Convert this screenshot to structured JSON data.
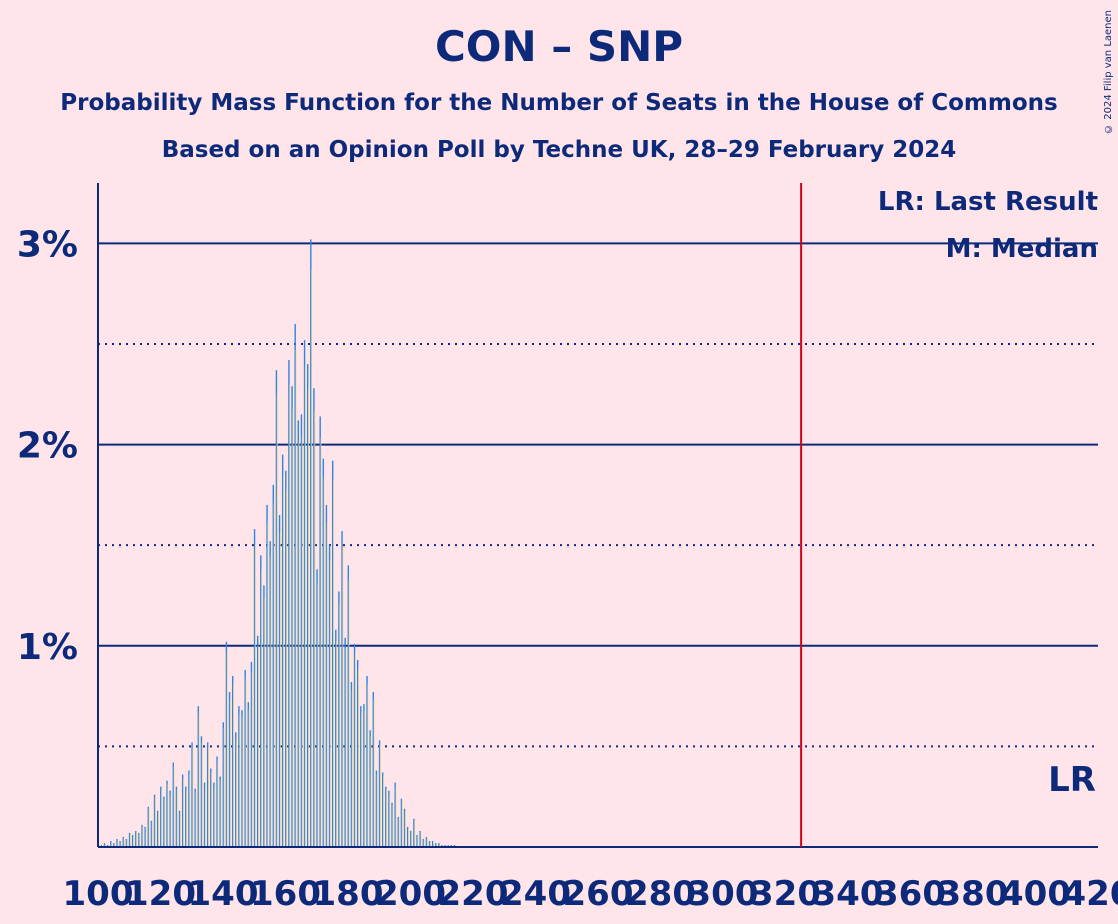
{
  "title": "CON – SNP",
  "subtitle1": "Probability Mass Function for the Number of Seats in the House of Commons",
  "subtitle2": "Based on an Opinion Poll by Techne UK, 28–29 February 2024",
  "copyright": "© 2024 Filip van Laenen",
  "colors": {
    "background": "#FFE5EA",
    "axis": "#0D2A7A",
    "bar_blue": "#2E86DE",
    "bar_yellow": "#F2D68A",
    "last_result_line": "#D0021B"
  },
  "chart_data": {
    "type": "bar",
    "xlim": [
      100,
      420
    ],
    "ylim": [
      0,
      3.3
    ],
    "x_ticks": [
      "100",
      "120",
      "140",
      "160",
      "180",
      "200",
      "220",
      "240",
      "260",
      "280",
      "300",
      "320",
      "340",
      "360",
      "380",
      "400",
      "420"
    ],
    "y_ticks": [
      {
        "value": 1,
        "label": "1%"
      },
      {
        "value": 2,
        "label": "2%"
      },
      {
        "value": 3,
        "label": "3%"
      }
    ],
    "y_minor_gridlines": [
      0.5,
      1.5,
      2.5
    ],
    "last_result": 325,
    "legend": {
      "last_result": "LR: Last Result",
      "median": "M: Median"
    },
    "lr_marker_label": "LR",
    "series": {
      "x": [
        100,
        101,
        102,
        103,
        104,
        105,
        106,
        107,
        108,
        109,
        110,
        111,
        112,
        113,
        114,
        115,
        116,
        117,
        118,
        119,
        120,
        121,
        122,
        123,
        124,
        125,
        126,
        127,
        128,
        129,
        130,
        131,
        132,
        133,
        134,
        135,
        136,
        137,
        138,
        139,
        140,
        141,
        142,
        143,
        144,
        145,
        146,
        147,
        148,
        149,
        150,
        151,
        152,
        153,
        154,
        155,
        156,
        157,
        158,
        159,
        160,
        161,
        162,
        163,
        164,
        165,
        166,
        167,
        168,
        169,
        170,
        171,
        172,
        173,
        174,
        175,
        176,
        177,
        178,
        179,
        180,
        181,
        182,
        183,
        184,
        185,
        186,
        187,
        188,
        189,
        190,
        191,
        192,
        193,
        194,
        195,
        196,
        197,
        198,
        199,
        200,
        201,
        202,
        203,
        204,
        205,
        206,
        207,
        208,
        209,
        210,
        211,
        212,
        213,
        214,
        215,
        216,
        217,
        218,
        219,
        220,
        221,
        222,
        223,
        224,
        225,
        226,
        227,
        228,
        229,
        230,
        231,
        232,
        233,
        234,
        235,
        236,
        237,
        238,
        239,
        240,
        241,
        242,
        243,
        244,
        245
      ],
      "probability": [
        0.01,
        0.01,
        0.02,
        0.01,
        0.03,
        0.02,
        0.04,
        0.03,
        0.05,
        0.04,
        0.07,
        0.06,
        0.08,
        0.07,
        0.11,
        0.1,
        0.2,
        0.13,
        0.26,
        0.18,
        0.3,
        0.25,
        0.33,
        0.28,
        0.42,
        0.3,
        0.18,
        0.36,
        0.3,
        0.38,
        0.52,
        0.29,
        0.7,
        0.55,
        0.32,
        0.52,
        0.39,
        0.32,
        0.45,
        0.35,
        0.62,
        1.02,
        0.77,
        0.85,
        0.57,
        0.7,
        0.68,
        0.88,
        0.72,
        0.92,
        1.58,
        1.05,
        1.45,
        1.3,
        1.7,
        1.52,
        1.8,
        2.37,
        1.65,
        1.95,
        1.87,
        2.42,
        2.29,
        2.6,
        2.12,
        2.15,
        2.52,
        2.4,
        3.02,
        2.28,
        1.38,
        2.14,
        1.93,
        1.7,
        1.5,
        1.92,
        1.08,
        1.27,
        1.57,
        1.04,
        1.4,
        0.82,
        1.01,
        0.93,
        0.7,
        0.71,
        0.85,
        0.58,
        0.77,
        0.38,
        0.53,
        0.37,
        0.3,
        0.28,
        0.22,
        0.32,
        0.15,
        0.24,
        0.19,
        0.1,
        0.08,
        0.14,
        0.06,
        0.08,
        0.04,
        0.05,
        0.03,
        0.03,
        0.02,
        0.02,
        0.01,
        0.01,
        0.01,
        0.01,
        0.01,
        0.0,
        0.0,
        0.0,
        0.0,
        0.0,
        0.0,
        0.0,
        0.0,
        0.0,
        0.0,
        0.0,
        0.0,
        0.0,
        0.0,
        0.0,
        0.0,
        0.0,
        0.0,
        0.0,
        0.0,
        0.0,
        0.0,
        0.0,
        0.0,
        0.0,
        0.0,
        0.0,
        0.0,
        0.0,
        0.0,
        0.0
      ]
    }
  }
}
